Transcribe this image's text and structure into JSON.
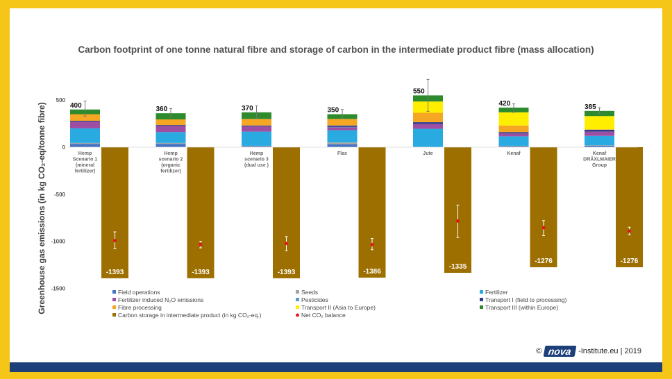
{
  "colors": {
    "frame": "#f5c518",
    "band": "#1d3f7a",
    "field_operations": "#4472c4",
    "seeds": "#a5a5a5",
    "fertilizer": "#29abe2",
    "fertilizer_n2o": "#9e4fa3",
    "pesticides": "#5b9bd5",
    "transport_i": "#2f3d8f",
    "fibre_processing": "#f5a623",
    "transport_ii": "#ffee00",
    "transport_iii": "#2d8a2d",
    "carbon_storage": "#9c6f00",
    "net_balance": "#e3141b"
  },
  "chart_data": {
    "type": "bar",
    "title": "Carbon footprint of one tonne natural fibre and storage of carbon in the intermediate product fibre (mass allocation)",
    "ylabel": "Greenhouse gas emissions (in kg CO₂-eq/tonne fibre)",
    "ylim": [
      -1500,
      600
    ],
    "yticks": [
      500,
      0,
      -500,
      -1000,
      -1500
    ],
    "grid": false,
    "legend_position": "bottom",
    "categories": [
      [
        "Hemp",
        "Scenario 1",
        "(mineral",
        "fertilizer)"
      ],
      [
        "Hemp",
        "scenario 2",
        "(organic",
        "fertilizer)"
      ],
      [
        "Hemp",
        "scenario 3",
        "(dual use )"
      ],
      [
        "Flax"
      ],
      [
        "Jute"
      ],
      [
        "Kenaf"
      ],
      [
        "Kenaf",
        "DRÄXLMAIER",
        "Group"
      ]
    ],
    "totals": [
      400,
      360,
      370,
      350,
      550,
      420,
      385
    ],
    "total_error": [
      [
        330,
        490
      ],
      [
        320,
        410
      ],
      [
        310,
        440
      ],
      [
        310,
        400
      ],
      [
        380,
        720
      ],
      [
        370,
        460
      ],
      [
        360,
        420
      ]
    ],
    "series": [
      {
        "name": "Field operations",
        "key": "field_operations",
        "values": [
          35,
          35,
          10,
          30,
          0,
          10,
          15
        ]
      },
      {
        "name": "Seeds",
        "key": "seeds",
        "values": [
          10,
          10,
          5,
          20,
          0,
          5,
          5
        ]
      },
      {
        "name": "Fertilizer",
        "key": "fertilizer",
        "values": [
          155,
          115,
          150,
          130,
          195,
          100,
          100
        ]
      },
      {
        "name": "Fertilizer induced N₂O emissions",
        "key": "fertilizer_n2o",
        "values": [
          70,
          65,
          55,
          30,
          50,
          30,
          45
        ]
      },
      {
        "name": "Pesticides",
        "key": "pesticides",
        "values": [
          0,
          0,
          0,
          5,
          0,
          0,
          0
        ]
      },
      {
        "name": "Transport I (field to processing)",
        "key": "transport_i",
        "values": [
          10,
          10,
          10,
          15,
          20,
          15,
          20
        ]
      },
      {
        "name": "Fibre processing",
        "key": "fibre_processing",
        "values": [
          70,
          60,
          70,
          70,
          100,
          70,
          5
        ]
      },
      {
        "name": "Transport II (Asia to Europe)",
        "key": "transport_ii",
        "values": [
          0,
          0,
          0,
          0,
          120,
          140,
          140
        ]
      },
      {
        "name": "Transport III (within Europe)",
        "key": "transport_iii",
        "values": [
          50,
          65,
          70,
          50,
          65,
          50,
          55
        ]
      }
    ],
    "carbon_storage": {
      "name": "Carbon storage in intermediate product (in kg CO₂-eq.)",
      "values": [
        -1393,
        -1393,
        -1393,
        -1386,
        -1335,
        -1276,
        -1276
      ]
    },
    "net_balance": {
      "name": "Net CO₂ balance",
      "values": [
        -993,
        -1033,
        -1023,
        -1036,
        -785,
        -856,
        -891
      ],
      "error": [
        [
          -1080,
          -900
        ],
        [
          -1070,
          -1000
        ],
        [
          -1100,
          -950
        ],
        [
          -1090,
          -970
        ],
        [
          -960,
          -615
        ],
        [
          -940,
          -780
        ],
        [
          -930,
          -850
        ]
      ]
    },
    "legend_order": [
      [
        "field_operations",
        "seeds",
        "fertilizer"
      ],
      [
        "fertilizer_n2o",
        "pesticides",
        "transport_i"
      ],
      [
        "fibre_processing",
        "transport_ii",
        "transport_iii"
      ],
      [
        "carbon_storage",
        "net_balance"
      ]
    ]
  },
  "footer": {
    "copyright": "©",
    "logo_text": "nova",
    "institute": "-Institute.eu | 2019"
  }
}
